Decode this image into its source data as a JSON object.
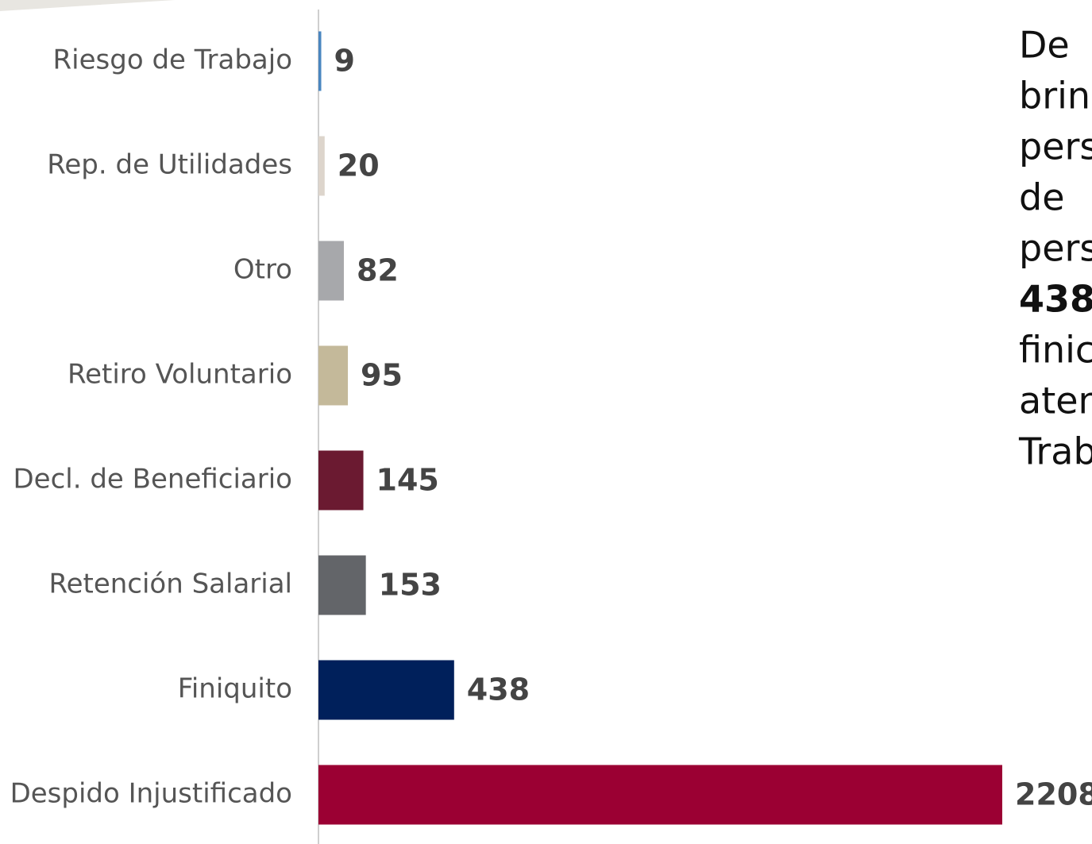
{
  "chart_data": {
    "type": "barh",
    "categories": [
      "Riesgo de Trabajo",
      "Rep. de Utilidades",
      "Otro",
      "Retiro Voluntario",
      "Decl. de Beneficiario",
      "Retención Salarial",
      "Finiquito",
      "Despido Injustificado"
    ],
    "values": [
      9,
      20,
      82,
      95,
      145,
      153,
      438,
      2208
    ],
    "colors": [
      "#4a86c0",
      "#ddd5cc",
      "#a7a8ab",
      "#c4b99a",
      "#6b1a31",
      "#636569",
      "#00205b",
      "#9b0033"
    ],
    "xlim": [
      0,
      2208
    ],
    "annotation_lines": [
      "De",
      "brin",
      "pers",
      "de",
      "pers",
      "438",
      "finic",
      "aten",
      "Trab"
    ]
  }
}
